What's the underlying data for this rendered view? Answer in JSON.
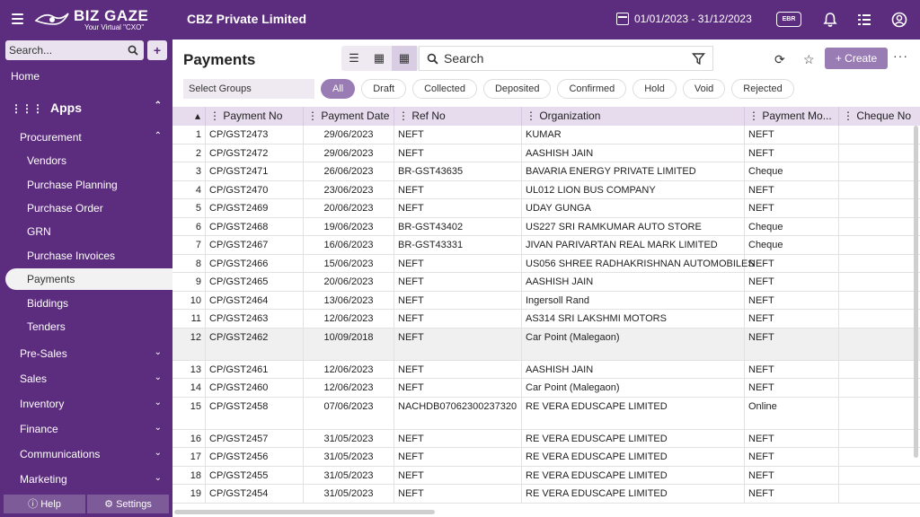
{
  "topbar": {
    "logo_name": "BIZ GAZE",
    "logo_tagline": "Your Virtual \"CXO\"",
    "company": "CBZ Private Limited",
    "date_range": "01/01/2023 - 31/12/2023",
    "badge": "EBR"
  },
  "sidebar": {
    "search_placeholder": "Search...",
    "add_label": "+",
    "home": "Home",
    "apps": "Apps",
    "procurement": "Procurement",
    "items": [
      "Vendors",
      "Purchase Planning",
      "Purchase Order",
      "GRN",
      "Purchase Invoices",
      "Payments",
      "Biddings",
      "Tenders"
    ],
    "groups": [
      "Pre-Sales",
      "Sales",
      "Inventory",
      "Finance",
      "Communications",
      "Marketing"
    ],
    "help": "Help",
    "settings": "Settings"
  },
  "main": {
    "title": "Payments",
    "search_placeholder": "Search",
    "create_label": "+ Create",
    "more_label": "···",
    "select_groups": "Select Groups",
    "chips": [
      "All",
      "Draft",
      "Collected",
      "Deposited",
      "Confirmed",
      "Hold",
      "Void",
      "Rejected"
    ]
  },
  "table": {
    "columns": [
      "Payment No",
      "Payment Date",
      "Ref No",
      "Organization",
      "Payment Mo...",
      "Cheque No"
    ],
    "rows": [
      {
        "n": "1",
        "no": "CP/GST2473",
        "date": "29/06/2023",
        "ref": "NEFT",
        "org": "KUMAR",
        "mode": "NEFT"
      },
      {
        "n": "2",
        "no": "CP/GST2472",
        "date": "29/06/2023",
        "ref": "NEFT",
        "org": "AASHISH JAIN",
        "mode": "NEFT"
      },
      {
        "n": "3",
        "no": "CP/GST2471",
        "date": "26/06/2023",
        "ref": "BR-GST43635",
        "org": "BAVARIA ENERGY PRIVATE LIMITED",
        "mode": "Cheque"
      },
      {
        "n": "4",
        "no": "CP/GST2470",
        "date": "23/06/2023",
        "ref": "NEFT",
        "org": "UL012 LION BUS COMPANY",
        "mode": "NEFT"
      },
      {
        "n": "5",
        "no": "CP/GST2469",
        "date": "20/06/2023",
        "ref": "NEFT",
        "org": "UDAY GUNGA",
        "mode": "NEFT"
      },
      {
        "n": "6",
        "no": "CP/GST2468",
        "date": "19/06/2023",
        "ref": "BR-GST43402",
        "org": "US227 SRI RAMKUMAR AUTO STORE",
        "mode": "Cheque"
      },
      {
        "n": "7",
        "no": "CP/GST2467",
        "date": "16/06/2023",
        "ref": "BR-GST43331",
        "org": "JIVAN PARIVARTAN REAL MARK LIMITED",
        "mode": "Cheque"
      },
      {
        "n": "8",
        "no": "CP/GST2466",
        "date": "15/06/2023",
        "ref": "NEFT",
        "org": "US056 SHREE RADHAKRISHNAN AUTOMOBILES",
        "mode": "NEFT"
      },
      {
        "n": "9",
        "no": "CP/GST2465",
        "date": "20/06/2023",
        "ref": "NEFT",
        "org": "AASHISH JAIN",
        "mode": "NEFT"
      },
      {
        "n": "10",
        "no": "CP/GST2464",
        "date": "13/06/2023",
        "ref": "NEFT",
        "org": "Ingersoll Rand",
        "mode": "NEFT"
      },
      {
        "n": "11",
        "no": "CP/GST2463",
        "date": "12/06/2023",
        "ref": "NEFT",
        "org": "AS314 SRI LAKSHMI MOTORS",
        "mode": "NEFT"
      },
      {
        "n": "12",
        "no": "CP/GST2462",
        "date": "10/09/2018",
        "ref": "NEFT",
        "org": "Car Point (Malegaon)",
        "mode": "NEFT"
      },
      {
        "n": "13",
        "no": "CP/GST2461",
        "date": "12/06/2023",
        "ref": "NEFT",
        "org": "AASHISH JAIN",
        "mode": "NEFT"
      },
      {
        "n": "14",
        "no": "CP/GST2460",
        "date": "12/06/2023",
        "ref": "NEFT",
        "org": "Car Point (Malegaon)",
        "mode": "NEFT"
      },
      {
        "n": "15",
        "no": "CP/GST2458",
        "date": "07/06/2023",
        "ref": "NACHDB07062300237320",
        "org": "RE VERA EDUSCAPE LIMITED",
        "mode": "Online"
      },
      {
        "n": "16",
        "no": "CP/GST2457",
        "date": "31/05/2023",
        "ref": "NEFT",
        "org": "RE VERA EDUSCAPE LIMITED",
        "mode": "NEFT"
      },
      {
        "n": "17",
        "no": "CP/GST2456",
        "date": "31/05/2023",
        "ref": "NEFT",
        "org": "RE VERA EDUSCAPE LIMITED",
        "mode": "NEFT"
      },
      {
        "n": "18",
        "no": "CP/GST2455",
        "date": "31/05/2023",
        "ref": "NEFT",
        "org": "RE VERA EDUSCAPE LIMITED",
        "mode": "NEFT"
      },
      {
        "n": "19",
        "no": "CP/GST2454",
        "date": "31/05/2023",
        "ref": "NEFT",
        "org": "RE VERA EDUSCAPE LIMITED",
        "mode": "NEFT"
      }
    ]
  },
  "colors": {
    "brand": "#5c2d7e",
    "accent": "#9a7cb4",
    "header_row": "#e7dbee"
  }
}
